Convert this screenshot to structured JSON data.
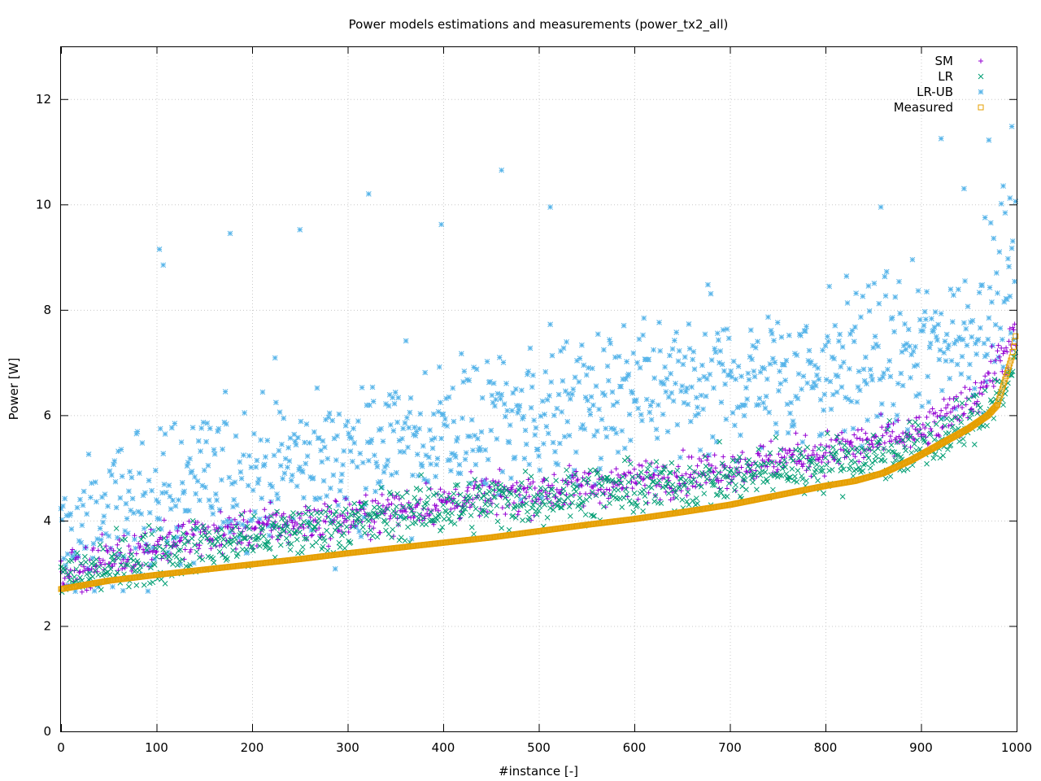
{
  "chart_data": {
    "type": "scatter",
    "title": "Power models estimations and measurements (power_tx2_all)",
    "xlabel": "#instance [-]",
    "ylabel": "Power [W]",
    "xlim": [
      0,
      1000
    ],
    "ylim": [
      0,
      13
    ],
    "xticks": [
      0,
      100,
      200,
      300,
      400,
      500,
      600,
      700,
      800,
      900,
      1000
    ],
    "yticks": [
      0,
      2,
      4,
      6,
      8,
      10,
      12
    ],
    "grid": true,
    "legend_position": "top-right",
    "measured_curve_x": [
      0,
      50,
      100,
      150,
      200,
      250,
      300,
      350,
      400,
      450,
      500,
      550,
      600,
      650,
      700,
      750,
      800,
      830,
      860,
      890,
      920,
      950,
      970,
      980,
      985,
      990,
      995,
      1000
    ],
    "measured_curve_y": [
      2.7,
      2.86,
      2.97,
      3.07,
      3.17,
      3.27,
      3.38,
      3.48,
      3.58,
      3.68,
      3.8,
      3.92,
      4.03,
      4.16,
      4.3,
      4.48,
      4.66,
      4.75,
      4.9,
      5.15,
      5.45,
      5.75,
      6.0,
      6.2,
      6.5,
      6.8,
      7.1,
      7.6
    ],
    "series": [
      {
        "name": "SM",
        "marker": "+",
        "color": "#9400d3",
        "center_x": [
          0,
          100,
          200,
          300,
          400,
          500,
          600,
          700,
          800,
          900,
          950,
          1000
        ],
        "center_y": [
          3.0,
          3.55,
          3.85,
          4.05,
          4.35,
          4.55,
          4.75,
          5.0,
          5.3,
          5.65,
          6.2,
          7.5
        ],
        "spread": 0.38
      },
      {
        "name": "LR",
        "marker": "x",
        "color": "#009e73",
        "center_x": [
          0,
          100,
          200,
          300,
          400,
          500,
          600,
          700,
          800,
          900,
          950,
          1000
        ],
        "center_y": [
          2.85,
          3.35,
          3.65,
          3.95,
          4.25,
          4.45,
          4.6,
          4.8,
          5.1,
          5.4,
          5.8,
          6.8
        ],
        "spread": 0.5
      },
      {
        "name": "LR-UB",
        "marker": "*",
        "color": "#56b4e9",
        "center_x": [
          0,
          100,
          200,
          300,
          400,
          500,
          600,
          700,
          800,
          900,
          950,
          1000
        ],
        "center_y": [
          3.5,
          4.4,
          4.9,
          5.2,
          5.7,
          6.0,
          6.3,
          6.6,
          6.9,
          7.2,
          7.6,
          8.5
        ],
        "spread": 1.3,
        "outliers": [
          {
            "x": 103,
            "y": 9.15
          },
          {
            "x": 107,
            "y": 8.85
          },
          {
            "x": 177,
            "y": 9.45
          },
          {
            "x": 250,
            "y": 9.52
          },
          {
            "x": 322,
            "y": 10.2
          },
          {
            "x": 398,
            "y": 9.62
          },
          {
            "x": 461,
            "y": 10.65
          },
          {
            "x": 512,
            "y": 9.95
          },
          {
            "x": 858,
            "y": 9.95
          },
          {
            "x": 921,
            "y": 11.25
          },
          {
            "x": 945,
            "y": 10.3
          },
          {
            "x": 967,
            "y": 9.75
          },
          {
            "x": 971,
            "y": 11.22
          },
          {
            "x": 986,
            "y": 10.35
          },
          {
            "x": 995,
            "y": 11.48
          },
          {
            "x": 993,
            "y": 10.12
          }
        ]
      },
      {
        "name": "Measured",
        "marker": "square",
        "color": "#e69f00"
      }
    ],
    "n_instances": 1000
  }
}
